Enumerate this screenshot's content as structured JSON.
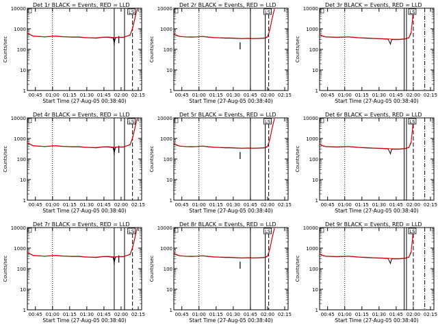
{
  "figure": {
    "panels": [
      {
        "title": "Det 1r BLACK = Events, RED = LLD",
        "tag": "LS"
      },
      {
        "title": "Det 2r BLACK = Events, RED = LLD",
        "tag": "LS"
      },
      {
        "title": "Det 3r BLACK = Events, RED = LLD",
        "tag": "LS"
      },
      {
        "title": "Det 4r BLACK = Events, RED = LLD",
        "tag": "LS"
      },
      {
        "title": "Det 5r BLACK = Events, RED = LLD",
        "tag": "LS"
      },
      {
        "title": "Det 6r BLACK = Events, RED = LLD",
        "tag": "LS"
      },
      {
        "title": "Det 7r BLACK = Events, RED = LLD",
        "tag": "LS"
      },
      {
        "title": "Det 8r BLACK = Events, RED = LLD",
        "tag": "LS"
      },
      {
        "title": "Det 9r BLACK = Events, RED = LLD",
        "tag": "LS"
      }
    ],
    "colors": {
      "events": "#000000",
      "lld": "#ff0000",
      "axes": "#000000"
    }
  },
  "chart_data": {
    "type": "line",
    "layout": "3x3 grid",
    "ylabel": "Counts/sec",
    "xlabel": "Start Time (27-Aug-05 00:38:40)",
    "y_scale": "log",
    "ylim": [
      1,
      10000
    ],
    "y_ticks": [
      1,
      10,
      100,
      1000,
      10000
    ],
    "y_tick_labels": [
      "1",
      "10",
      "100",
      "1000",
      "10000"
    ],
    "x_range_minutes_after_0038": [
      0,
      100
    ],
    "x_ticks_minutes_after_0038": [
      7,
      22,
      37,
      52,
      67,
      82,
      97
    ],
    "x_tick_labels": [
      "00:45",
      "01:00",
      "01:15",
      "01:30",
      "01:45",
      "02:00",
      "02:15"
    ],
    "grid": false,
    "panel_variants": [
      "a",
      "b",
      "c",
      "a",
      "b",
      "c",
      "a",
      "b",
      "c"
    ],
    "series_by_variant": {
      "a": {
        "events": [
          [
            0,
            600
          ],
          [
            2,
            530
          ],
          [
            5,
            440
          ],
          [
            10,
            420
          ],
          [
            15,
            400
          ],
          [
            20,
            420
          ],
          [
            25,
            440
          ],
          [
            30,
            410
          ],
          [
            35,
            400
          ],
          [
            40,
            390
          ],
          [
            45,
            390
          ],
          [
            50,
            370
          ],
          [
            55,
            360
          ],
          [
            60,
            350
          ],
          [
            65,
            380
          ],
          [
            70,
            390
          ],
          [
            73,
            370
          ],
          [
            75,
            360
          ],
          [
            76,
            200
          ],
          [
            77,
            370
          ],
          [
            80,
            380
          ],
          [
            84,
            380
          ],
          [
            86,
            420
          ],
          [
            88,
            450
          ],
          [
            90,
            500
          ],
          [
            92,
            1000
          ],
          [
            94,
            3000
          ],
          [
            96,
            9000
          ]
        ],
        "lld": [
          [
            0,
            620
          ],
          [
            2,
            540
          ],
          [
            5,
            450
          ],
          [
            10,
            430
          ],
          [
            15,
            410
          ],
          [
            20,
            430
          ],
          [
            25,
            450
          ],
          [
            30,
            420
          ],
          [
            35,
            410
          ],
          [
            40,
            400
          ],
          [
            45,
            400
          ],
          [
            50,
            380
          ],
          [
            55,
            370
          ],
          [
            60,
            360
          ],
          [
            65,
            390
          ],
          [
            70,
            400
          ],
          [
            75,
            380
          ],
          [
            80,
            390
          ],
          [
            84,
            390
          ],
          [
            86,
            430
          ],
          [
            88,
            460
          ],
          [
            90,
            520
          ],
          [
            92,
            1100
          ],
          [
            94,
            3200
          ],
          [
            96,
            9500
          ]
        ],
        "dotted_x": 22,
        "solid_x": [
          76,
          85
        ],
        "dashed_x": 92,
        "dashdot_x": 100,
        "spikes": [
          [
            76,
            150
          ],
          [
            80,
            200
          ]
        ]
      },
      "b": {
        "events": [
          [
            0,
            550
          ],
          [
            2,
            480
          ],
          [
            5,
            420
          ],
          [
            10,
            400
          ],
          [
            15,
            390
          ],
          [
            20,
            400
          ],
          [
            25,
            420
          ],
          [
            30,
            390
          ],
          [
            35,
            370
          ],
          [
            40,
            360
          ],
          [
            45,
            350
          ],
          [
            50,
            350
          ],
          [
            55,
            340
          ],
          [
            60,
            330
          ],
          [
            65,
            340
          ],
          [
            70,
            330
          ],
          [
            75,
            340
          ],
          [
            80,
            350
          ],
          [
            82,
            400
          ],
          [
            84,
            900
          ],
          [
            86,
            3000
          ],
          [
            88,
            9000
          ]
        ],
        "lld": [
          [
            0,
            570
          ],
          [
            2,
            500
          ],
          [
            5,
            430
          ],
          [
            10,
            410
          ],
          [
            15,
            400
          ],
          [
            20,
            410
          ],
          [
            25,
            430
          ],
          [
            30,
            400
          ],
          [
            35,
            380
          ],
          [
            40,
            370
          ],
          [
            45,
            360
          ],
          [
            50,
            360
          ],
          [
            55,
            350
          ],
          [
            60,
            340
          ],
          [
            65,
            350
          ],
          [
            70,
            340
          ],
          [
            75,
            350
          ],
          [
            80,
            360
          ],
          [
            82,
            420
          ],
          [
            84,
            950
          ],
          [
            86,
            3200
          ],
          [
            88,
            9500
          ]
        ],
        "dotted_x": 22,
        "solid_x": [
          67,
          80
        ],
        "dashed_x": 83,
        "dashdot_x": 100,
        "spikes": [
          [
            58,
            100
          ]
        ]
      },
      "c": {
        "events": [
          [
            0,
            520
          ],
          [
            2,
            450
          ],
          [
            5,
            400
          ],
          [
            10,
            390
          ],
          [
            15,
            380
          ],
          [
            20,
            390
          ],
          [
            25,
            400
          ],
          [
            30,
            380
          ],
          [
            35,
            360
          ],
          [
            40,
            350
          ],
          [
            45,
            340
          ],
          [
            50,
            330
          ],
          [
            55,
            320
          ],
          [
            60,
            310
          ],
          [
            62,
            180
          ],
          [
            63,
            300
          ],
          [
            65,
            300
          ],
          [
            70,
            300
          ],
          [
            75,
            320
          ],
          [
            78,
            360
          ],
          [
            80,
            600
          ],
          [
            81,
            2000
          ],
          [
            82,
            8000
          ]
        ],
        "lld": [
          [
            0,
            540
          ],
          [
            2,
            470
          ],
          [
            5,
            410
          ],
          [
            10,
            400
          ],
          [
            15,
            390
          ],
          [
            20,
            400
          ],
          [
            25,
            410
          ],
          [
            30,
            390
          ],
          [
            35,
            370
          ],
          [
            40,
            360
          ],
          [
            45,
            350
          ],
          [
            50,
            340
          ],
          [
            55,
            330
          ],
          [
            60,
            320
          ],
          [
            65,
            310
          ],
          [
            70,
            310
          ],
          [
            75,
            330
          ],
          [
            78,
            370
          ],
          [
            80,
            650
          ],
          [
            81,
            2100
          ],
          [
            82,
            8500
          ]
        ],
        "dotted_x": 22,
        "solid_x": [
          74,
          76
        ],
        "dashed_x": 82,
        "dashdot_x": 92,
        "spikes": []
      }
    }
  }
}
